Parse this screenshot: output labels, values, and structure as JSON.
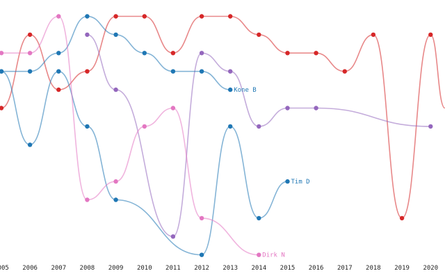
{
  "chart_data": {
    "type": "line",
    "title": "",
    "xlabel": "",
    "ylabel": "",
    "x_ticks": [
      "2005",
      "2006",
      "2007",
      "2008",
      "2009",
      "2010",
      "2011",
      "2012",
      "2013",
      "2014",
      "2015",
      "2016",
      "2017",
      "2018",
      "2019",
      "2020"
    ],
    "y_axis": {
      "visible": false,
      "inverted": true,
      "range": [
        1,
        14
      ]
    },
    "grid": false,
    "legend": "inline end labels",
    "series": [
      {
        "id": "red",
        "name": "",
        "color": "#d62728",
        "points": [
          [
            2005,
            6
          ],
          [
            2006,
            2
          ],
          [
            2007,
            5
          ],
          [
            2008,
            4
          ],
          [
            2009,
            1
          ],
          [
            2010,
            1
          ],
          [
            2011,
            3
          ],
          [
            2012,
            1
          ],
          [
            2013,
            1
          ],
          [
            2014,
            2
          ],
          [
            2015,
            3
          ],
          [
            2016,
            3
          ],
          [
            2017,
            4
          ],
          [
            2018,
            2
          ],
          [
            2019,
            12
          ],
          [
            2020,
            2
          ],
          [
            2020.5,
            6
          ]
        ]
      },
      {
        "id": "purple",
        "name": "",
        "color": "#9467bd",
        "points": [
          [
            2008,
            2
          ],
          [
            2009,
            5
          ],
          [
            2011,
            13
          ],
          [
            2012,
            3
          ],
          [
            2013,
            4
          ],
          [
            2014,
            7
          ],
          [
            2015,
            6
          ],
          [
            2016,
            6
          ],
          [
            2020,
            7
          ]
        ]
      },
      {
        "id": "kone",
        "name": "Kone B",
        "color": "#1f77b4",
        "points": [
          [
            2004.7,
            4.6
          ],
          [
            2005,
            4
          ],
          [
            2006,
            4
          ],
          [
            2007,
            3
          ],
          [
            2008,
            1
          ],
          [
            2009,
            2
          ],
          [
            2010,
            3
          ],
          [
            2011,
            4
          ],
          [
            2012,
            4
          ],
          [
            2013,
            5
          ]
        ]
      },
      {
        "id": "tim",
        "name": "Tim D",
        "color": "#1f77b4",
        "points": [
          [
            2005,
            4
          ],
          [
            2006,
            8
          ],
          [
            2007,
            4
          ],
          [
            2008,
            7
          ],
          [
            2009,
            11
          ],
          [
            2012,
            14
          ],
          [
            2013,
            7
          ],
          [
            2014,
            12
          ],
          [
            2015,
            10
          ]
        ]
      },
      {
        "id": "dirk",
        "name": "Dirk N",
        "color": "#e377c2",
        "points": [
          [
            2005,
            3
          ],
          [
            2006,
            3
          ],
          [
            2007,
            1
          ],
          [
            2008,
            11
          ],
          [
            2009,
            10
          ],
          [
            2010,
            7
          ],
          [
            2011,
            6
          ],
          [
            2012,
            12
          ],
          [
            2014,
            14
          ]
        ]
      }
    ]
  }
}
